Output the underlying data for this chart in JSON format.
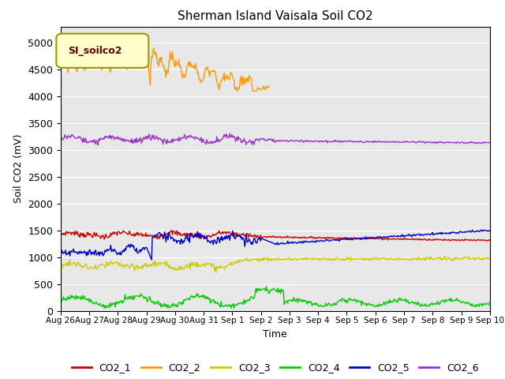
{
  "title": "Sherman Island Vaisala Soil CO2",
  "xlabel": "Time",
  "ylabel": "Soil CO2 (mV)",
  "ylim": [
    0,
    5300
  ],
  "yticks": [
    0,
    500,
    1000,
    1500,
    2000,
    2500,
    3000,
    3500,
    4000,
    4500,
    5000
  ],
  "bg_color": "#e8e8e8",
  "legend_label": "SI_soilco2",
  "series_colors": {
    "CO2_1": "#cc0000",
    "CO2_2": "#ff9900",
    "CO2_3": "#cccc00",
    "CO2_4": "#00cc00",
    "CO2_5": "#0000cc",
    "CO2_6": "#9933cc"
  },
  "date_labels": [
    "Aug 26",
    "Aug 27",
    "Aug 28",
    "Aug 29",
    "Aug 30",
    "Aug 31",
    "Sep 1",
    "Sep 2",
    "Sep 3",
    "Sep 4",
    "Sep 5",
    "Sep 6",
    "Sep 7",
    "Sep 8",
    "Sep 9",
    "Sep 10"
  ]
}
